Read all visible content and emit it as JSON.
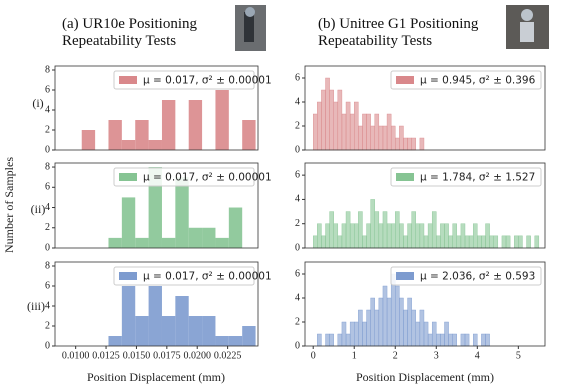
{
  "columns": [
    {
      "title": "(a) UR10e Positioning Repeatability Tests",
      "xlabel": "Position Displacement (mm)"
    },
    {
      "title": "(b) Unitree G1 Positioning Repeatability Tests",
      "xlabel": "Position Displacement (mm)"
    }
  ],
  "row_labels": [
    "(i)",
    "(ii)",
    "(iii)"
  ],
  "ylabel": "Number of Samples",
  "chart_data": [
    {
      "type": "histogram",
      "bins": [
        0.0105,
        0.0116,
        0.0127,
        0.0138,
        0.0149,
        0.016,
        0.0171,
        0.0182,
        0.0193,
        0.0204,
        0.0215,
        0.0226,
        0.0237,
        0.0248
      ],
      "series": [
        {
          "name": "μ = 0.017,  σ² ± 0.00001",
          "color": "#d9888b",
          "values": [
            2,
            0,
            3,
            1,
            3,
            1,
            5,
            0,
            5,
            0,
            6,
            0,
            3
          ]
        }
      ],
      "xlim": [
        0.0083,
        0.025
      ],
      "ylim": [
        0,
        8.4
      ],
      "yticks": [
        0,
        2,
        4,
        6,
        8
      ],
      "legend": "upper right"
    },
    {
      "type": "histogram",
      "bins": [
        0,
        0.1,
        0.2,
        0.3,
        0.4,
        0.5,
        0.6,
        0.7,
        0.8,
        0.9,
        1.0,
        1.1,
        1.2,
        1.3,
        1.4,
        1.5,
        1.6,
        1.7,
        1.8,
        1.9,
        2.0,
        2.1,
        2.2,
        2.3,
        2.4,
        2.5,
        2.6,
        2.7,
        2.8,
        2.9,
        3.0,
        3.1,
        3.2,
        3.3,
        3.4,
        3.5,
        3.6,
        3.7,
        3.8,
        3.9,
        4.0,
        4.1,
        4.2,
        4.3,
        4.4,
        4.5,
        4.6,
        4.7,
        4.8,
        4.9,
        5.0,
        5.1,
        5.2,
        5.3,
        5.4,
        5.5,
        5.6
      ],
      "series": [
        {
          "name": "μ = 0.945,  σ² ± 0.396",
          "color": "#d9888b",
          "values": [
            3,
            4,
            5,
            6,
            5,
            4,
            5,
            3,
            4,
            3,
            4,
            2,
            3,
            3,
            2,
            3,
            2,
            2,
            3,
            2,
            1,
            2,
            1,
            1,
            1,
            0,
            1,
            0,
            0,
            0,
            0,
            0,
            0,
            0,
            0,
            0,
            0,
            0,
            0,
            0,
            0,
            0,
            0,
            0,
            0,
            0,
            0,
            0,
            0,
            0,
            0,
            0,
            0,
            0,
            0,
            0
          ]
        }
      ],
      "xlim": [
        -0.2,
        5.65
      ],
      "ylim": [
        0,
        7
      ],
      "yticks": [
        0,
        2,
        4,
        6
      ],
      "legend": "upper right"
    },
    {
      "type": "histogram",
      "bins": [
        0.0105,
        0.0116,
        0.0127,
        0.0138,
        0.0149,
        0.016,
        0.0171,
        0.0182,
        0.0193,
        0.0204,
        0.0215,
        0.0226,
        0.0237,
        0.0248
      ],
      "series": [
        {
          "name": "μ = 0.017,  σ² ± 0.00001",
          "color": "#86c493",
          "values": [
            0,
            0,
            1,
            5,
            1,
            8,
            1,
            7,
            2,
            2,
            1,
            4,
            0
          ]
        }
      ],
      "xlim": [
        0.0083,
        0.025
      ],
      "ylim": [
        0,
        8.4
      ],
      "yticks": [
        0,
        2,
        4,
        6,
        8
      ],
      "legend": "upper right"
    },
    {
      "type": "histogram",
      "bins": [
        0,
        0.1,
        0.2,
        0.3,
        0.4,
        0.5,
        0.6,
        0.7,
        0.8,
        0.9,
        1.0,
        1.1,
        1.2,
        1.3,
        1.4,
        1.5,
        1.6,
        1.7,
        1.8,
        1.9,
        2.0,
        2.1,
        2.2,
        2.3,
        2.4,
        2.5,
        2.6,
        2.7,
        2.8,
        2.9,
        3.0,
        3.1,
        3.2,
        3.3,
        3.4,
        3.5,
        3.6,
        3.7,
        3.8,
        3.9,
        4.0,
        4.1,
        4.2,
        4.3,
        4.4,
        4.5,
        4.6,
        4.7,
        4.8,
        4.9,
        5.0,
        5.1,
        5.2,
        5.3,
        5.4,
        5.5,
        5.6
      ],
      "series": [
        {
          "name": "μ = 1.784,  σ² ± 1.527",
          "color": "#86c493",
          "values": [
            1,
            2,
            1,
            2,
            3,
            2,
            1,
            2,
            3,
            2,
            2,
            3,
            1,
            2,
            4,
            3,
            2,
            3,
            2,
            2,
            3,
            2,
            1,
            2,
            3,
            2,
            2,
            1,
            2,
            3,
            1,
            2,
            2,
            1,
            2,
            1,
            2,
            1,
            1,
            2,
            1,
            1,
            2,
            1,
            1,
            0,
            1,
            1,
            0,
            1,
            1,
            0,
            1,
            0,
            1,
            0
          ]
        }
      ],
      "xlim": [
        -0.2,
        5.65
      ],
      "ylim": [
        0,
        7
      ],
      "yticks": [
        0,
        2,
        4,
        6
      ],
      "legend": "upper right"
    },
    {
      "type": "histogram",
      "bins": [
        0.0105,
        0.0116,
        0.0127,
        0.0138,
        0.0149,
        0.016,
        0.0171,
        0.0182,
        0.0193,
        0.0204,
        0.0215,
        0.0226,
        0.0237,
        0.0248
      ],
      "series": [
        {
          "name": "μ = 0.017,  σ² ± 0.00001",
          "color": "#7d9bcf",
          "values": [
            0,
            0,
            1,
            6,
            3,
            6,
            3,
            5,
            3,
            3,
            1,
            1,
            2
          ]
        }
      ],
      "xlim": [
        0.0083,
        0.025
      ],
      "ylim": [
        0,
        8.4
      ],
      "yticks": [
        0,
        2,
        4,
        6,
        8
      ],
      "xticks": [
        {
          "value": 0.01,
          "label": "0.0100"
        },
        {
          "value": 0.0125,
          "label": "0.0125"
        },
        {
          "value": 0.015,
          "label": "0.0150"
        },
        {
          "value": 0.0175,
          "label": "0.0175"
        },
        {
          "value": 0.02,
          "label": "0.0200"
        },
        {
          "value": 0.0225,
          "label": "0.0225"
        }
      ],
      "legend": "upper right"
    },
    {
      "type": "histogram",
      "bins": [
        0,
        0.1,
        0.2,
        0.3,
        0.4,
        0.5,
        0.6,
        0.7,
        0.8,
        0.9,
        1.0,
        1.1,
        1.2,
        1.3,
        1.4,
        1.5,
        1.6,
        1.7,
        1.8,
        1.9,
        2.0,
        2.1,
        2.2,
        2.3,
        2.4,
        2.5,
        2.6,
        2.7,
        2.8,
        2.9,
        3.0,
        3.1,
        3.2,
        3.3,
        3.4,
        3.5,
        3.6,
        3.7,
        3.8,
        3.9,
        4.0,
        4.1,
        4.2,
        4.3,
        4.4,
        4.5,
        4.6,
        4.7,
        4.8,
        4.9,
        5.0,
        5.1,
        5.2,
        5.3,
        5.4,
        5.5,
        5.6
      ],
      "series": [
        {
          "name": "μ = 2.036,  σ² ± 0.593",
          "color": "#7d9bcf",
          "values": [
            0,
            1,
            0,
            1,
            1,
            0,
            1,
            2,
            1,
            2,
            2,
            3,
            2,
            3,
            4,
            3,
            4,
            5,
            4,
            6,
            5,
            4,
            3,
            4,
            3,
            2,
            3,
            2,
            1,
            2,
            1,
            1,
            2,
            1,
            1,
            0,
            1,
            1,
            0,
            1,
            0,
            1,
            1,
            0,
            0,
            0,
            0,
            0,
            0,
            0,
            0,
            0,
            0,
            0,
            0,
            0
          ]
        }
      ],
      "xlim": [
        -0.2,
        5.65
      ],
      "ylim": [
        0,
        7
      ],
      "yticks": [
        0,
        2,
        4,
        6
      ],
      "xticks": [
        0,
        1,
        2,
        3,
        4,
        5
      ],
      "legend": "upper right"
    }
  ]
}
